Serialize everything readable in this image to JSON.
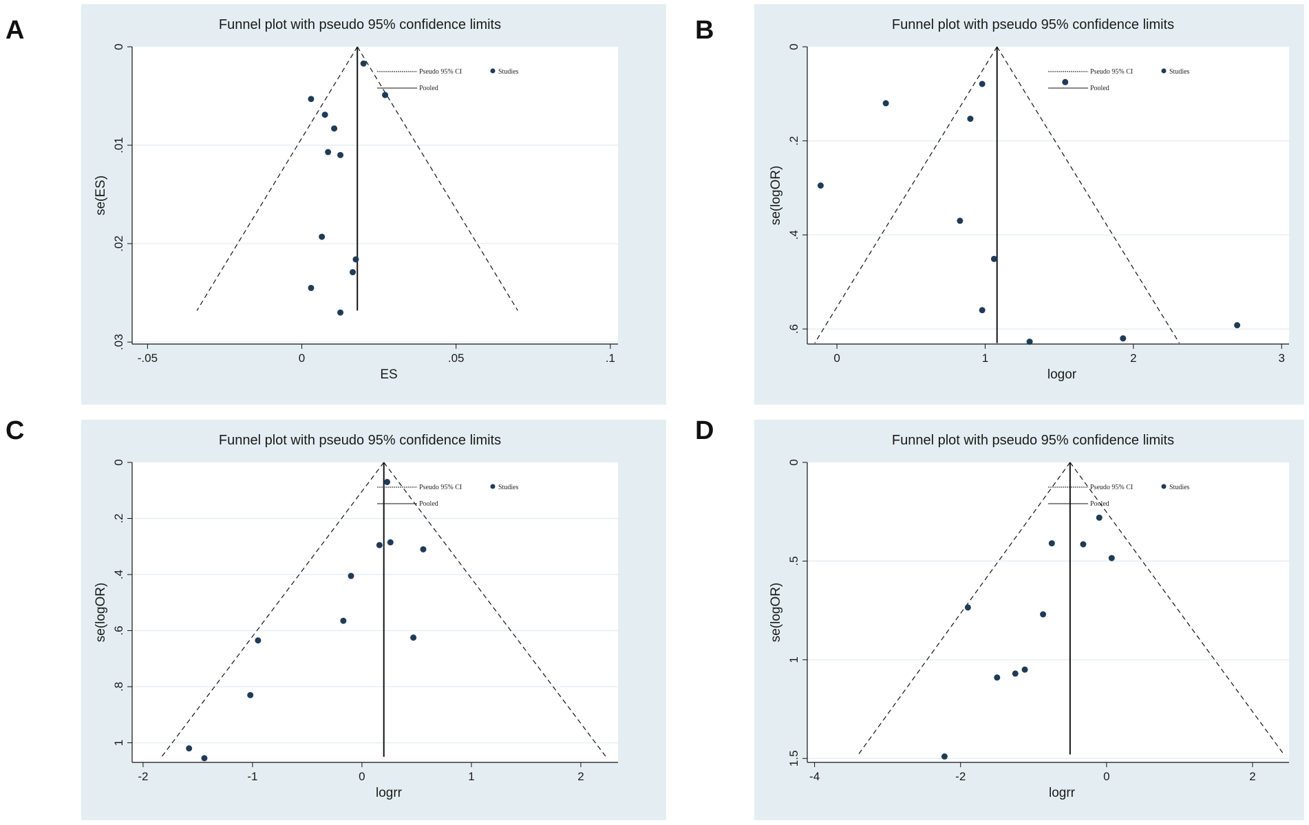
{
  "colors": {
    "panel_background": "#e4eef2",
    "plot_background": "#ffffff",
    "gridline": "#e6eef2",
    "line": "#111111",
    "marker": "#1f3b57"
  },
  "chart_data": [
    {
      "panel_label": "A",
      "type": "scatter",
      "title": "Funnel plot with pseudo 95% confidence limits",
      "xlabel": "ES",
      "ylabel": "se(ES)",
      "xlim": [
        -0.055,
        0.1025
      ],
      "ylim": [
        0,
        0.0302
      ],
      "y_inverted": true,
      "xticks": [
        -0.05,
        0,
        0.05,
        0.1
      ],
      "xtick_labels": [
        "-.05",
        "0",
        ".05",
        ".1"
      ],
      "yticks": [
        0,
        0.01,
        0.02,
        0.03
      ],
      "ytick_labels": [
        "0",
        ".01",
        ".02",
        ".03"
      ],
      "pooled": 0.018,
      "funnel": {
        "apex": [
          0.018,
          0
        ],
        "left_base": [
          -0.034,
          0.0268
        ],
        "right_base": [
          0.07,
          0.0268
        ]
      },
      "legend": {
        "ci_label": "Pseudo 95% CI",
        "pooled_label": "Pooled",
        "studies_label": "Studies"
      },
      "points": [
        {
          "x": 0.02,
          "y": 0.0017
        },
        {
          "x": 0.027,
          "y": 0.0049
        },
        {
          "x": 0.003,
          "y": 0.0053
        },
        {
          "x": 0.0075,
          "y": 0.0069
        },
        {
          "x": 0.0105,
          "y": 0.0083
        },
        {
          "x": 0.0085,
          "y": 0.0107
        },
        {
          "x": 0.0125,
          "y": 0.011
        },
        {
          "x": 0.0065,
          "y": 0.0193
        },
        {
          "x": 0.0175,
          "y": 0.0216
        },
        {
          "x": 0.0165,
          "y": 0.0229
        },
        {
          "x": 0.003,
          "y": 0.0245
        },
        {
          "x": 0.0125,
          "y": 0.027
        }
      ]
    },
    {
      "panel_label": "B",
      "type": "scatter",
      "title": "Funnel plot with pseudo 95% confidence limits",
      "xlabel": "logor",
      "ylabel": "se(logOR)",
      "xlim": [
        -0.2,
        3.05
      ],
      "ylim": [
        0,
        0.632
      ],
      "y_inverted": true,
      "xticks": [
        0,
        1,
        2,
        3
      ],
      "xtick_labels": [
        "0",
        "1",
        "2",
        "3"
      ],
      "yticks": [
        0,
        0.2,
        0.4,
        0.6
      ],
      "ytick_labels": [
        "0",
        ".2",
        ".4",
        ".6"
      ],
      "pooled": 1.08,
      "funnel": {
        "apex": [
          1.08,
          0
        ],
        "left_base": [
          -0.15,
          0.63
        ],
        "right_base": [
          2.31,
          0.63
        ]
      },
      "legend": {
        "ci_label": "Pseudo 95% CI",
        "pooled_label": "Pooled",
        "studies_label": "Studies"
      },
      "points": [
        {
          "x": 0.98,
          "y": 0.079
        },
        {
          "x": 1.54,
          "y": 0.075
        },
        {
          "x": 0.33,
          "y": 0.12
        },
        {
          "x": 0.9,
          "y": 0.153
        },
        {
          "x": -0.11,
          "y": 0.295
        },
        {
          "x": 0.83,
          "y": 0.37
        },
        {
          "x": 1.06,
          "y": 0.451
        },
        {
          "x": 0.98,
          "y": 0.56
        },
        {
          "x": 2.7,
          "y": 0.592
        },
        {
          "x": 1.3,
          "y": 0.627
        },
        {
          "x": 1.93,
          "y": 0.62
        }
      ]
    },
    {
      "panel_label": "C",
      "type": "scatter",
      "title": "Funnel plot with pseudo 95% confidence limits",
      "xlabel": "logrr",
      "ylabel": "se(logOR)",
      "xlim": [
        -2.1,
        2.34
      ],
      "ylim": [
        0,
        1.07
      ],
      "y_inverted": true,
      "xticks": [
        -2,
        -1,
        0,
        1,
        2
      ],
      "xtick_labels": [
        "-2",
        "-1",
        "0",
        "1",
        "2"
      ],
      "yticks": [
        0,
        0.2,
        0.4,
        0.6,
        0.8,
        1
      ],
      "ytick_labels": [
        "0",
        ".2",
        ".4",
        ".6",
        ".8",
        "1"
      ],
      "pooled": 0.2,
      "funnel": {
        "apex": [
          0.2,
          0
        ],
        "left_base": [
          -1.83,
          1.05
        ],
        "right_base": [
          2.23,
          1.05
        ]
      },
      "legend": {
        "ci_label": "Pseudo 95% CI",
        "pooled_label": "Pooled",
        "studies_label": "Studies"
      },
      "points": [
        {
          "x": 0.23,
          "y": 0.07
        },
        {
          "x": 0.16,
          "y": 0.295
        },
        {
          "x": 0.26,
          "y": 0.285
        },
        {
          "x": 0.56,
          "y": 0.31
        },
        {
          "x": -0.1,
          "y": 0.405
        },
        {
          "x": -0.17,
          "y": 0.565
        },
        {
          "x": 0.47,
          "y": 0.625
        },
        {
          "x": -0.95,
          "y": 0.635
        },
        {
          "x": -1.02,
          "y": 0.83
        },
        {
          "x": -1.58,
          "y": 1.02
        },
        {
          "x": -1.44,
          "y": 1.055
        }
      ]
    },
    {
      "panel_label": "D",
      "type": "scatter",
      "title": "Funnel plot with pseudo 95% confidence limits",
      "xlabel": "logrr",
      "ylabel": "se(logOR)",
      "xlim": [
        -4.1,
        2.5
      ],
      "ylim": [
        0,
        1.52
      ],
      "y_inverted": true,
      "xticks": [
        -4,
        -2,
        0,
        2
      ],
      "xtick_labels": [
        "-4",
        "-2",
        "0",
        "2"
      ],
      "yticks": [
        0,
        0.5,
        1,
        1.5
      ],
      "ytick_labels": [
        "0",
        ".5",
        "1",
        "1.5"
      ],
      "pooled": -0.5,
      "funnel": {
        "apex": [
          -0.5,
          0
        ],
        "left_base": [
          -3.4,
          1.48
        ],
        "right_base": [
          2.43,
          1.48
        ]
      },
      "legend": {
        "ci_label": "Pseudo 95% CI",
        "pooled_label": "Pooled",
        "studies_label": "Studies"
      },
      "points": [
        {
          "x": -0.1,
          "y": 0.28
        },
        {
          "x": -0.75,
          "y": 0.41
        },
        {
          "x": -0.32,
          "y": 0.415
        },
        {
          "x": 0.07,
          "y": 0.485
        },
        {
          "x": -1.9,
          "y": 0.735
        },
        {
          "x": -0.87,
          "y": 0.77
        },
        {
          "x": -1.5,
          "y": 1.09
        },
        {
          "x": -1.25,
          "y": 1.07
        },
        {
          "x": -1.12,
          "y": 1.05
        },
        {
          "x": -2.22,
          "y": 1.49
        }
      ]
    }
  ]
}
